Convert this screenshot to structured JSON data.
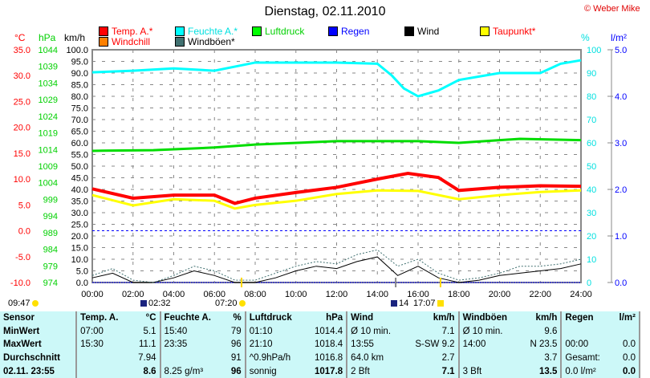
{
  "title": "Dienstag, 02.11.2010",
  "copyright": "© Weber Mike",
  "legend": [
    {
      "label": "Temp. A.*",
      "color": "#ff0000",
      "text": "#ff0000"
    },
    {
      "label": "Feuchte A.*",
      "color": "#00ffff",
      "text": "#00e0e0"
    },
    {
      "label": "Luftdruck",
      "color": "#00ff00",
      "text": "#00d000"
    },
    {
      "label": "Regen",
      "color": "#0000ff",
      "text": "#0000ff"
    },
    {
      "label": "Wind",
      "color": "#000000",
      "text": "#000000"
    },
    {
      "label": "Taupunkt*",
      "color": "#ffff00",
      "text": "#ff0000"
    },
    {
      "label": "Windchill",
      "color": "#ff8000",
      "text": "#ff0000"
    },
    {
      "label": "Windböen*",
      "color": "#407070",
      "text": "#000000"
    }
  ],
  "axis_units": {
    "temp": "°C",
    "hpa": "hPa",
    "kmh": "km/h",
    "pct": "%",
    "rain": "l/m²"
  },
  "chart_data": {
    "type": "line",
    "title": "Dienstag, 02.11.2010",
    "x_ticks": [
      "00:00",
      "02:00",
      "04:00",
      "06:00",
      "08:00",
      "10:00",
      "12:00",
      "14:00",
      "16:00",
      "18:00",
      "20:00",
      "22:00",
      "24:00"
    ],
    "temp_ticks": [
      "35.0",
      "30.0",
      "25.0",
      "20.0",
      "15.0",
      "10.0",
      "5.0",
      "0.0",
      "-5.0",
      "-10.0"
    ],
    "hpa_ticks": [
      "1044",
      "1039",
      "1034",
      "1029",
      "1024",
      "1019",
      "1014",
      "1009",
      "1004",
      "999",
      "994",
      "989",
      "984",
      "979",
      "974"
    ],
    "kmh_ticks": [
      "100.0",
      "95.0",
      "90.0",
      "85.0",
      "80.0",
      "75.0",
      "70.0",
      "65.0",
      "60.0",
      "55.0",
      "50.0",
      "45.0",
      "40.0",
      "35.0",
      "30.0",
      "25.0",
      "20.0",
      "15.0",
      "10.0",
      "5.0",
      "0.0"
    ],
    "pct_ticks": [
      "100",
      "90",
      "80",
      "70",
      "60",
      "50",
      "40",
      "30",
      "20",
      "10",
      "0"
    ],
    "rain_ticks": [
      "5.0",
      "4.0",
      "3.0",
      "2.0",
      "1.0",
      "0.0"
    ],
    "series": [
      {
        "name": "Temp. A.",
        "unit": "°C",
        "color": "#ff0000",
        "width": 4,
        "x": [
          0,
          2,
          4,
          6,
          7,
          8,
          10,
          12,
          14,
          15.5,
          17,
          18,
          20,
          22,
          24
        ],
        "values": [
          8.1,
          6.3,
          6.9,
          6.9,
          5.3,
          6.3,
          7.4,
          8.4,
          10,
          11.1,
          10.3,
          7.8,
          8.4,
          8.7,
          8.6
        ]
      },
      {
        "name": "Taupunkt",
        "unit": "°C",
        "color": "#ffff00",
        "width": 3,
        "x": [
          0,
          2,
          4,
          6,
          7,
          8,
          10,
          12,
          14,
          16,
          18,
          20,
          22,
          24
        ],
        "values": [
          6.9,
          4.9,
          6.1,
          5.8,
          4.3,
          5.0,
          5.8,
          7.1,
          7.8,
          7.7,
          6.1,
          6.9,
          7.5,
          7.8
        ]
      },
      {
        "name": "Feuchte A.",
        "unit": "%",
        "color": "#00ffff",
        "width": 3,
        "x": [
          0,
          2,
          4,
          6,
          8,
          10,
          12,
          14,
          14.7,
          15.3,
          16,
          17,
          18,
          20,
          22,
          23,
          24
        ],
        "values": [
          90.3,
          91,
          92,
          91,
          94.5,
          94.5,
          94.5,
          94,
          89,
          83.4,
          80,
          82.5,
          87,
          90,
          90,
          94,
          95.5
        ]
      },
      {
        "name": "Luftdruck",
        "unit": "hPa",
        "color": "#00dd00",
        "width": 3,
        "x": [
          0,
          3,
          6,
          8,
          12,
          16,
          18,
          21,
          24
        ],
        "values": [
          1013.6,
          1013.8,
          1014.6,
          1015.5,
          1016.5,
          1016.5,
          1016.0,
          1017.2,
          1016.8
        ]
      },
      {
        "name": "Windböen",
        "unit": "km/h",
        "color": "#407070",
        "width": 1,
        "dash": "2,2",
        "x": [
          0,
          1,
          2,
          3,
          4,
          5,
          6,
          7,
          8,
          9,
          10,
          11,
          12,
          13,
          14,
          15,
          16,
          17,
          18,
          19,
          20,
          21,
          22,
          23,
          24
        ],
        "values": [
          3,
          6,
          1,
          0,
          3,
          7,
          5,
          1,
          1,
          4,
          7,
          9,
          8,
          12,
          14,
          7,
          10,
          4,
          1,
          2,
          4,
          7,
          7,
          8,
          10
        ]
      },
      {
        "name": "Wind",
        "unit": "km/h",
        "color": "#000000",
        "width": 1,
        "x": [
          0,
          1,
          2,
          3,
          4,
          5,
          6,
          7,
          8,
          9,
          10,
          11,
          12,
          13,
          14,
          15,
          16,
          17,
          18,
          19,
          20,
          21,
          22,
          23,
          24
        ],
        "values": [
          2,
          4,
          0,
          0,
          2,
          5,
          3,
          0,
          0,
          2,
          5,
          7,
          6,
          9,
          11,
          3,
          7,
          2,
          0,
          1,
          3,
          4,
          5,
          6,
          8
        ]
      },
      {
        "name": "Regen",
        "unit": "l/m²",
        "color": "#0000ff",
        "width": 1,
        "dash": "2,1",
        "x": [
          0,
          24
        ],
        "values": [
          0,
          0
        ]
      }
    ]
  },
  "astro": [
    {
      "label": "09:47",
      "icon": "moonset-icon"
    },
    {
      "label": "02:32",
      "icon": "moonrise-icon"
    },
    {
      "label": "07:20",
      "icon": "sunrise-icon"
    },
    {
      "label": "14",
      "icon": "moon-phase-icon"
    },
    {
      "label": "17:07",
      "icon": "sunset-icon"
    }
  ],
  "table": {
    "rows": [
      [
        "Sensor",
        "Temp. A.",
        "°C",
        "Feuchte A.",
        "%",
        "Luftdruck",
        "hPa",
        "Wind",
        "km/h",
        "Windböen",
        "km/h",
        "Regen",
        "l/m²"
      ],
      [
        "MinWert",
        "07:00",
        "5.1",
        "15:40",
        "79",
        "01:10",
        "1014.4",
        "Ø 10 min.",
        "7.1",
        "Ø 10 min.",
        "9.6",
        "",
        ""
      ],
      [
        "MaxWert",
        "15:30",
        "11.1",
        "23:35",
        "96",
        "21:10",
        "1018.4",
        "13:55",
        "S-SW 9.2",
        "14:00",
        "N 23.5",
        "00:00",
        "0.0"
      ],
      [
        "Durchschnitt",
        "",
        "7.94",
        "",
        "91",
        "^0.9hPa/h",
        "1016.8",
        "64.0 km",
        "2.7",
        "",
        "3.7",
        "Gesamt:",
        "0.0"
      ],
      [
        "02.11. 23:55",
        "",
        "8.6",
        "8.25 g/m³",
        "96",
        "sonnig",
        "1017.8",
        "2 Bft",
        "7.1",
        "3 Bft",
        "13.5",
        "0.0 l/m²",
        "0.0"
      ]
    ]
  }
}
